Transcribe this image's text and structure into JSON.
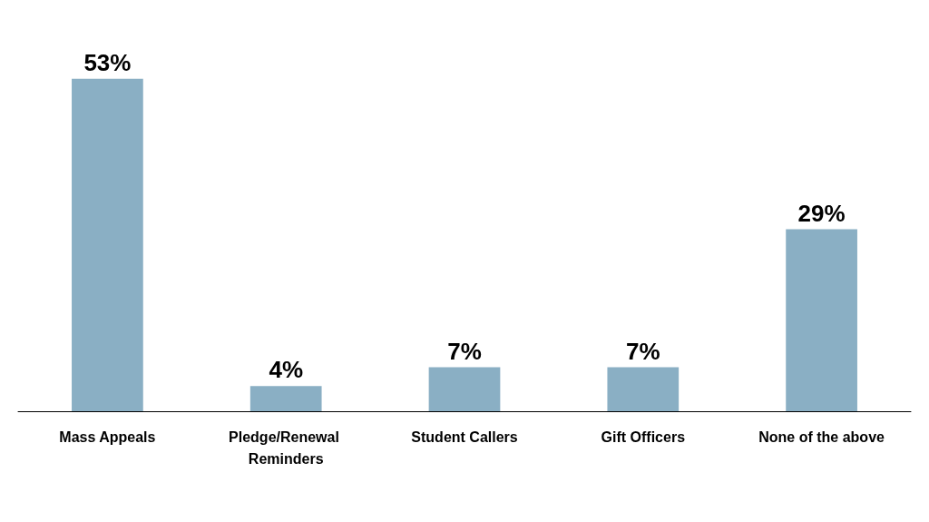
{
  "chart_data": {
    "type": "bar",
    "categories": [
      "Mass Appeals",
      "Pledge/Renewal Reminders",
      "Student Callers",
      "Gift Officers",
      "None of the above"
    ],
    "values": [
      53,
      4,
      7,
      7,
      29
    ],
    "value_labels": [
      "53%",
      "4%",
      "7%",
      "7%",
      "29%"
    ],
    "color": "#8aafc4"
  }
}
